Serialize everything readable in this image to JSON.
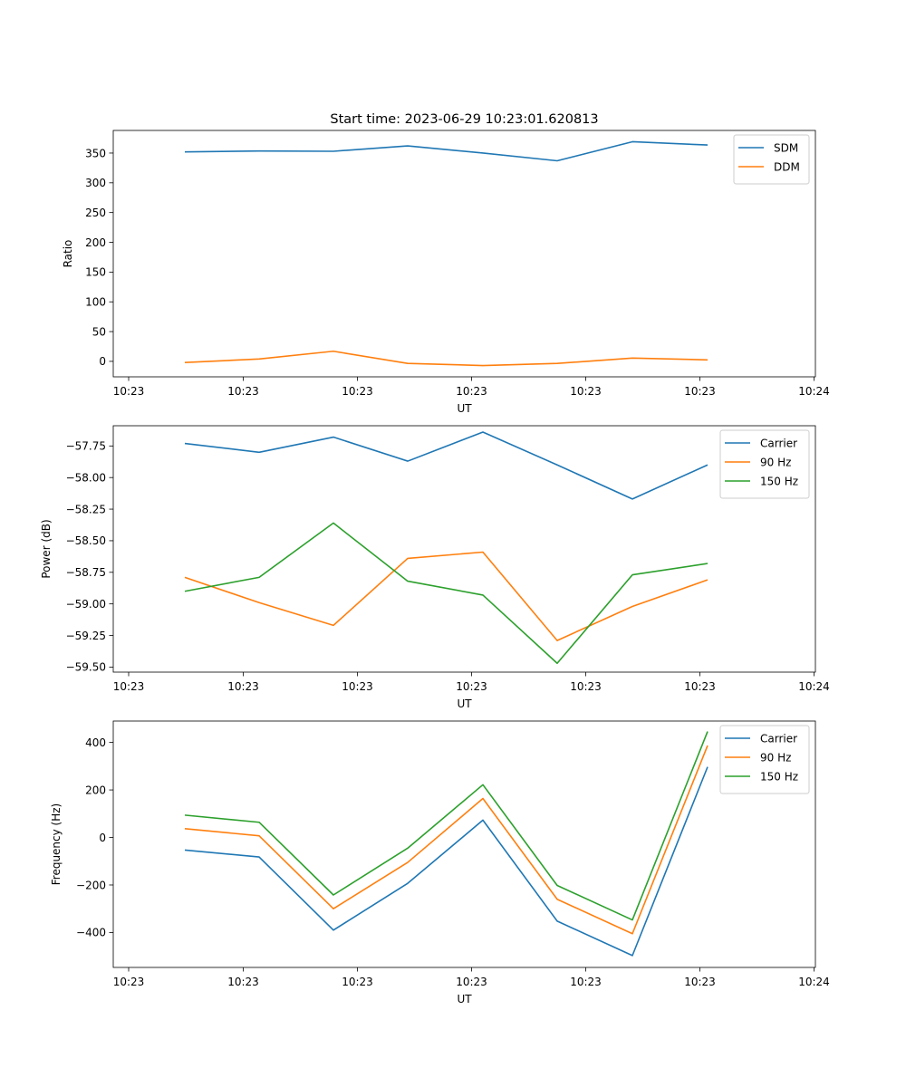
{
  "chart_data": [
    {
      "type": "line",
      "title": "Start time: 2023-06-29 10:23:01.620813",
      "xlabel": "UT",
      "ylabel": "Ratio",
      "x": [
        1,
        2,
        3,
        4,
        5,
        6,
        7,
        8
      ],
      "x_tick_labels": [
        "10:23",
        "10:23",
        "10:23",
        "10:23",
        "10:23",
        "10:23",
        "10:23"
      ],
      "x_tick_labels_last": "10:24",
      "y_ticks": [
        0,
        50,
        100,
        150,
        200,
        250,
        300,
        350
      ],
      "ylim": [
        -26,
        388
      ],
      "legend": "top-right",
      "series": [
        {
          "name": "SDM",
          "color": "#1f77b4",
          "values": [
            352,
            353.5,
            353,
            362,
            350,
            337,
            369,
            363.5
          ]
        },
        {
          "name": "DDM",
          "color": "#ff7f0e",
          "values": [
            -2,
            4,
            17,
            -3.5,
            -7,
            -3.5,
            5.5,
            2.5
          ]
        }
      ]
    },
    {
      "type": "line",
      "xlabel": "UT",
      "ylabel": "Power (dB)",
      "x": [
        1,
        2,
        3,
        4,
        5,
        6,
        7,
        8
      ],
      "x_tick_labels": [
        "10:23",
        "10:23",
        "10:23",
        "10:23",
        "10:23",
        "10:23",
        "10:23"
      ],
      "x_tick_labels_last": "10:24",
      "y_ticks": [
        -59.5,
        -59.25,
        -59.0,
        -58.75,
        -58.5,
        -58.25,
        -58.0,
        -57.75
      ],
      "y_tick_labels": [
        "−59.50",
        "−59.25",
        "−59.00",
        "−58.75",
        "−58.50",
        "−58.25",
        "−58.00",
        "−57.75"
      ],
      "ylim": [
        -59.54,
        -57.59
      ],
      "legend": "top-right",
      "series": [
        {
          "name": "Carrier",
          "color": "#1f77b4",
          "values": [
            -57.73,
            -57.8,
            -57.68,
            -57.87,
            -57.64,
            -57.9,
            -58.17,
            -57.9
          ]
        },
        {
          "name": "90 Hz",
          "color": "#ff7f0e",
          "values": [
            -58.79,
            -58.99,
            -59.17,
            -58.64,
            -58.59,
            -59.29,
            -59.02,
            -58.81
          ]
        },
        {
          "name": "150 Hz",
          "color": "#2ca02c",
          "values": [
            -58.9,
            -58.79,
            -58.36,
            -58.82,
            -58.93,
            -59.47,
            -58.77,
            -58.68
          ]
        }
      ]
    },
    {
      "type": "line",
      "xlabel": "UT",
      "ylabel": "Frequency (Hz)",
      "x": [
        1,
        2,
        3,
        4,
        5,
        6,
        7,
        8
      ],
      "x_tick_labels": [
        "10:23",
        "10:23",
        "10:23",
        "10:23",
        "10:23",
        "10:23",
        "10:23"
      ],
      "x_tick_labels_last": "10:24",
      "y_ticks": [
        -400,
        -200,
        0,
        200,
        400
      ],
      "y_tick_labels": [
        "−400",
        "−200",
        "0",
        "200",
        "400"
      ],
      "ylim": [
        -547,
        490
      ],
      "legend": "top-right",
      "series": [
        {
          "name": "Carrier",
          "color": "#1f77b4",
          "values": [
            -53,
            -82,
            -390,
            -193,
            73,
            -352,
            -497,
            297
          ]
        },
        {
          "name": "90 Hz",
          "color": "#ff7f0e",
          "values": [
            37,
            7,
            -300,
            -105,
            164,
            -260,
            -405,
            387
          ]
        },
        {
          "name": "150 Hz",
          "color": "#2ca02c",
          "values": [
            94,
            64,
            -242,
            -45,
            222,
            -202,
            -347,
            446
          ]
        }
      ]
    }
  ]
}
